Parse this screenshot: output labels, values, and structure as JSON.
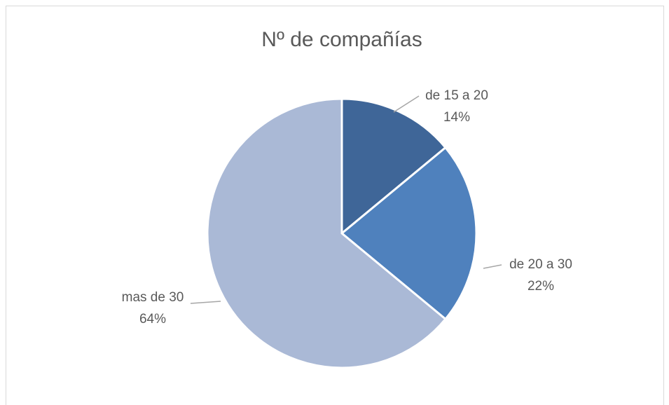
{
  "chart_data": {
    "type": "pie",
    "title": "Nº de compañías",
    "categories": [
      "de 15 a 20",
      "de 20 a 30",
      "mas de 30"
    ],
    "values": [
      14,
      22,
      64
    ],
    "value_labels": [
      "14%",
      "22%",
      "64%"
    ],
    "colors": [
      "#3f6698",
      "#4f81bd",
      "#aab9d6"
    ]
  }
}
